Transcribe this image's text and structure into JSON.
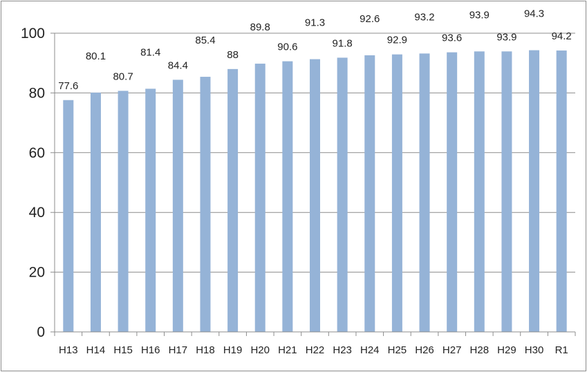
{
  "chart_data": {
    "type": "bar",
    "title": "",
    "xlabel": "",
    "ylabel": "",
    "categories": [
      "H13",
      "H14",
      "H15",
      "H16",
      "H17",
      "H18",
      "H19",
      "H20",
      "H21",
      "H22",
      "H23",
      "H24",
      "H25",
      "H26",
      "H27",
      "H28",
      "H29",
      "H30",
      "R1"
    ],
    "values": [
      77.6,
      80.1,
      80.7,
      81.4,
      84.4,
      85.4,
      88,
      89.8,
      90.6,
      91.3,
      91.8,
      92.6,
      92.9,
      93.2,
      93.6,
      93.9,
      93.9,
      94.3,
      94.2
    ],
    "data_labels": [
      "77.6",
      "80.1",
      "80.7",
      "81.4",
      "84.4",
      "85.4",
      "88",
      "89.8",
      "90.6",
      "91.3",
      "91.8",
      "92.6",
      "92.9",
      "93.2",
      "93.6",
      "93.9",
      "93.9",
      "94.3",
      "94.2"
    ],
    "ylim": [
      0,
      100
    ],
    "yticks": [
      0,
      20,
      40,
      60,
      80,
      100
    ],
    "grid": true,
    "legend": "none",
    "colors": {
      "bar": "#95b3d7",
      "grid": "#8c8c8c",
      "axis": "#8c8c8c",
      "text": "#222222"
    }
  }
}
